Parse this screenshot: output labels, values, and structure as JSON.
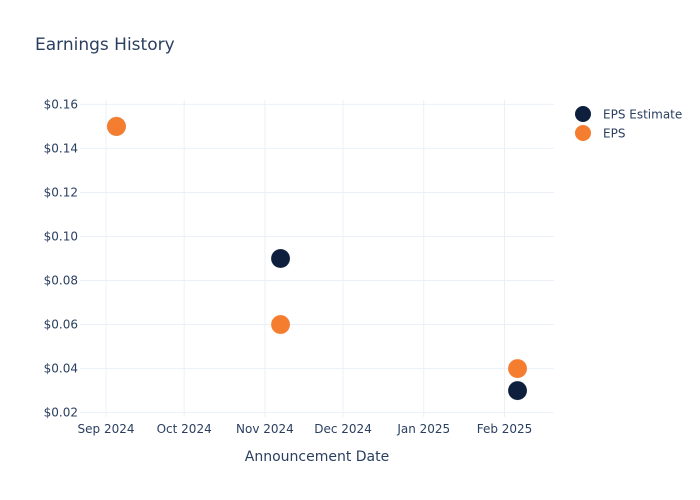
{
  "chart_data": {
    "type": "scatter",
    "title": "Earnings History",
    "xlabel": "Announcement Date",
    "ylabel": "",
    "x_ticks": [
      "Sep 2024",
      "Oct 2024",
      "Nov 2024",
      "Dec 2024",
      "Jan 2025",
      "Feb 2025"
    ],
    "x_tick_dates": [
      "2024-09-01",
      "2024-10-01",
      "2024-11-01",
      "2024-12-01",
      "2025-01-01",
      "2025-02-01"
    ],
    "xlim": [
      "2024-08-22",
      "2025-02-20"
    ],
    "y_ticks": [
      0.02,
      0.04,
      0.06,
      0.08,
      0.1,
      0.12,
      0.14,
      0.16
    ],
    "y_tick_labels": [
      "$0.02",
      "$0.04",
      "$0.06",
      "$0.08",
      "$0.10",
      "$0.12",
      "$0.14",
      "$0.16"
    ],
    "ylim": [
      0.018,
      0.162
    ],
    "grid": true,
    "legend_position": "top-right",
    "series": [
      {
        "name": "EPS Estimate",
        "color": "#0d1f3c",
        "points": [
          {
            "x": "2024-09-05",
            "y": 0.15
          },
          {
            "x": "2024-11-07",
            "y": 0.09
          },
          {
            "x": "2025-02-06",
            "y": 0.03
          }
        ]
      },
      {
        "name": "EPS",
        "color": "#f47d30",
        "points": [
          {
            "x": "2024-09-05",
            "y": 0.15
          },
          {
            "x": "2024-11-07",
            "y": 0.06
          },
          {
            "x": "2025-02-06",
            "y": 0.04
          }
        ]
      }
    ]
  }
}
